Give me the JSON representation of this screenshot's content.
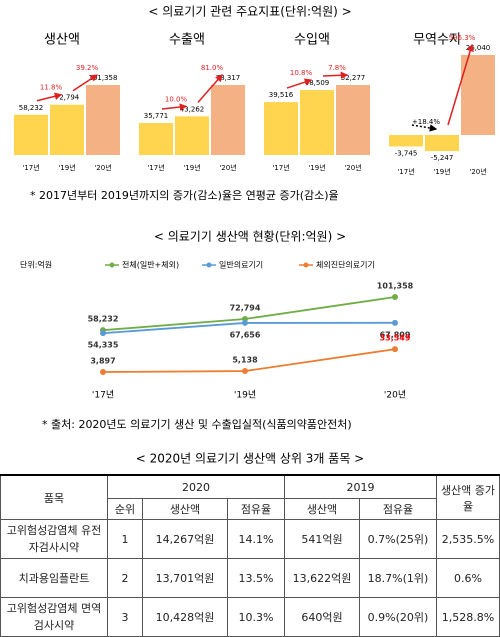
{
  "header": {
    "title": "< 의료기기 관련 주요지표(단위:억원) >",
    "note": "* 2017년부터 2019년까지의 증가(감소)율은 연평균 증가(감소)율"
  },
  "section": {
    "title": "< 의료기기 생산액 현황(단위:억원) >",
    "source": "* 출처: 2020년도 의료기기 생산 및 수출입실적(식품의약품안전처)"
  },
  "chart_data": [
    {
      "type": "bar",
      "title": "생산액",
      "categories": [
        "'17년",
        "'19년",
        "'20년"
      ],
      "values": [
        58232,
        72794,
        101358
      ],
      "value_labels": [
        "58,232",
        "72,794",
        "101,358"
      ],
      "colors": [
        "#ffd54f",
        "#ffd54f",
        "#f4b183"
      ],
      "annotations": [
        "11.8%",
        "39.2%"
      ],
      "annotation_colors": [
        "#e02020",
        "#e02020"
      ]
    },
    {
      "type": "bar",
      "title": "수출액",
      "categories": [
        "'17년",
        "'19년",
        "'20년"
      ],
      "values": [
        35771,
        43262,
        78317
      ],
      "value_labels": [
        "35,771",
        "43,262",
        "78,317"
      ],
      "colors": [
        "#ffd54f",
        "#ffd54f",
        "#f4b183"
      ],
      "annotations": [
        "10.0%",
        "81.0%"
      ],
      "annotation_colors": [
        "#e02020",
        "#e02020"
      ]
    },
    {
      "type": "bar",
      "title": "수입액",
      "categories": [
        "'17년",
        "'19년",
        "'20년"
      ],
      "values": [
        39516,
        48509,
        52277
      ],
      "value_labels": [
        "39,516",
        "48,509",
        "52,277"
      ],
      "colors": [
        "#ffd54f",
        "#ffd54f",
        "#f4b183"
      ],
      "annotations": [
        "10.8%",
        "7.8%"
      ],
      "annotation_colors": [
        "#e02020",
        "#e02020"
      ]
    },
    {
      "type": "bar",
      "title": "무역수지",
      "categories": [
        "'17년",
        "'19년",
        "'20년"
      ],
      "values": [
        -3745,
        -5247,
        26040
      ],
      "value_labels": [
        "-3,745",
        "-5,247",
        "26,040"
      ],
      "colors": [
        "#ffd54f",
        "#ffd54f",
        "#f4b183"
      ],
      "annotations": [
        "+18.4%",
        "596.3%"
      ],
      "annotation_colors": [
        "#000000",
        "#e02020"
      ]
    },
    {
      "type": "line",
      "unit_label": "단위:억원",
      "categories": [
        "'17년",
        "'19년",
        "'20년"
      ],
      "series": [
        {
          "name": "전체(일반+체외)",
          "color": "#70ad47",
          "values": [
            58232,
            72794,
            101358
          ],
          "value_labels": [
            "58,232",
            "72,794",
            "101,358"
          ]
        },
        {
          "name": "일반의료기기",
          "color": "#5b9bd5",
          "values": [
            54335,
            67656,
            67809
          ],
          "value_labels": [
            "54,335",
            "67,656",
            "67,809"
          ]
        },
        {
          "name": "체외진단의료기기",
          "color": "#ed7d31",
          "values": [
            3897,
            5138,
            33549
          ],
          "value_labels": [
            "3,897",
            "5,138",
            "33,549"
          ],
          "value_label_colors": [
            "#333333",
            "#333333",
            "#ff0000"
          ]
        }
      ]
    }
  ],
  "table": {
    "title": "< 2020년 의료기기 생산액 상위 3개 품목 >",
    "headers": [
      "품목",
      "2020",
      "2019",
      "생산액 증가율"
    ],
    "subheaders": [
      "순위",
      "생산액",
      "점유율",
      "생산액",
      "점유율"
    ],
    "rows": [
      [
        "고위험성감염체 유전자검사시약",
        "1",
        "14,267억원",
        "14.1%",
        "541억원",
        "0.7%(25위)",
        "2,535.5%"
      ],
      [
        "치과용임플란트",
        "2",
        "13,701억원",
        "13.5%",
        "13,622억원",
        "18.7%(1위)",
        "0.6%"
      ],
      [
        "고위험성감염체 면역검사시약",
        "3",
        "10,428억원",
        "10.3%",
        "640억원",
        "0.9%(20위)",
        "1,528.8%"
      ]
    ]
  }
}
